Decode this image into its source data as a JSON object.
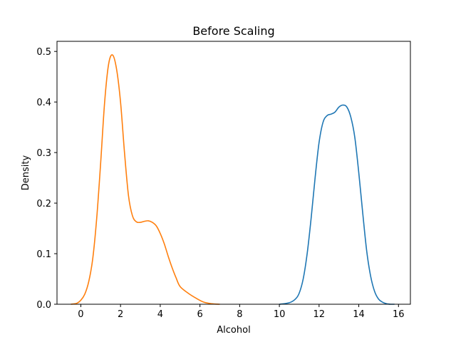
{
  "chart_data": {
    "type": "line",
    "title": "Before Scaling",
    "xlabel": "Alcohol",
    "ylabel": "Density",
    "xlim": [
      -1.2,
      16.6
    ],
    "ylim": [
      0,
      0.52
    ],
    "xticks": [
      0,
      2,
      4,
      6,
      8,
      10,
      12,
      14,
      16
    ],
    "yticks": [
      0.0,
      0.1,
      0.2,
      0.3,
      0.4,
      0.5
    ],
    "ytick_labels": [
      "0.0",
      "0.1",
      "0.2",
      "0.3",
      "0.4",
      "0.5"
    ],
    "grid": false,
    "series": [
      {
        "color": "#1f77b4",
        "x": [
          10.0,
          10.5,
          10.8,
          11.0,
          11.2,
          11.4,
          11.6,
          11.8,
          12.0,
          12.2,
          12.4,
          12.6,
          12.8,
          13.0,
          13.2,
          13.4,
          13.6,
          13.8,
          14.0,
          14.2,
          14.4,
          14.6,
          14.8,
          15.0,
          15.2,
          15.4,
          15.6,
          15.8
        ],
        "y": [
          0.0,
          0.003,
          0.01,
          0.022,
          0.05,
          0.1,
          0.17,
          0.25,
          0.32,
          0.36,
          0.373,
          0.376,
          0.38,
          0.39,
          0.394,
          0.39,
          0.37,
          0.33,
          0.26,
          0.18,
          0.105,
          0.055,
          0.025,
          0.01,
          0.004,
          0.001,
          0.0,
          0.0
        ]
      },
      {
        "color": "#ff7f0e",
        "x": [
          -0.5,
          -0.2,
          0.0,
          0.2,
          0.4,
          0.6,
          0.8,
          1.0,
          1.2,
          1.4,
          1.6,
          1.8,
          2.0,
          2.2,
          2.4,
          2.6,
          2.8,
          3.0,
          3.2,
          3.4,
          3.6,
          3.8,
          4.0,
          4.2,
          4.4,
          4.6,
          4.8,
          5.0,
          5.4,
          5.8,
          6.2,
          6.6,
          7.0
        ],
        "y": [
          0.0,
          0.002,
          0.008,
          0.02,
          0.045,
          0.09,
          0.17,
          0.28,
          0.4,
          0.475,
          0.493,
          0.465,
          0.4,
          0.3,
          0.215,
          0.175,
          0.163,
          0.162,
          0.164,
          0.165,
          0.162,
          0.155,
          0.14,
          0.12,
          0.095,
          0.072,
          0.052,
          0.035,
          0.022,
          0.012,
          0.004,
          0.001,
          0.0
        ]
      }
    ]
  }
}
